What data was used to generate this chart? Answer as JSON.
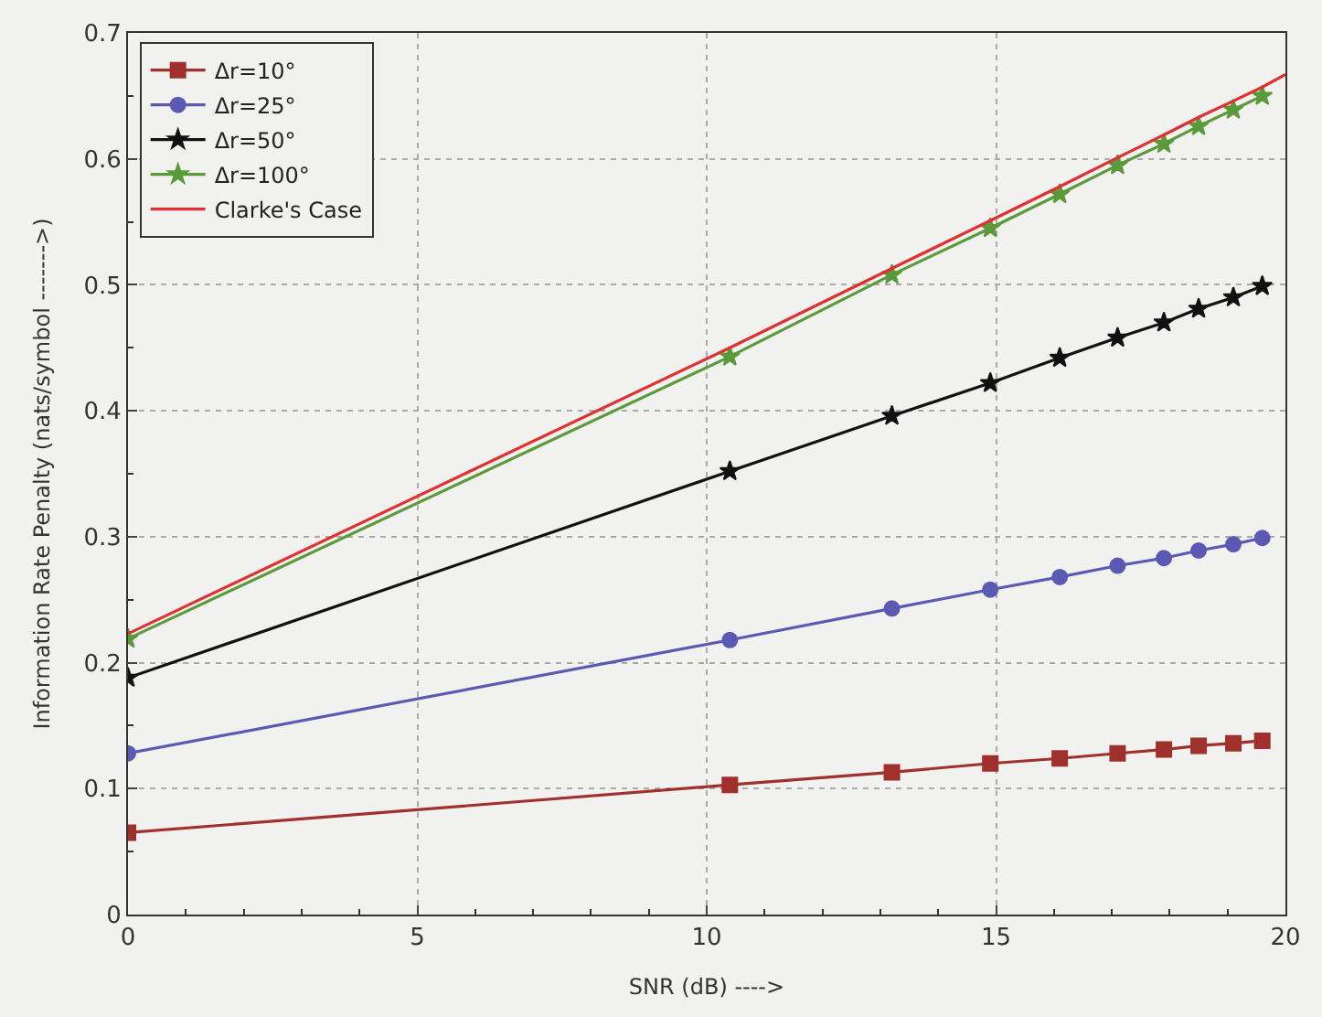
{
  "chart_data": {
    "type": "line",
    "xlabel": "SNR (dB) ---->",
    "ylabel": "Information Rate Penalty (nats/symbol ------->)",
    "xlim": [
      0,
      20
    ],
    "xticks": [
      0,
      5,
      10,
      15,
      20
    ],
    "ylim": [
      0,
      0.7
    ],
    "yticks": [
      0,
      0.1,
      0.2,
      0.3,
      0.4,
      0.5,
      0.6,
      0.7
    ],
    "grid": true,
    "legend": "top left",
    "line_style": "solid",
    "x": [
      0,
      10.4,
      13.2,
      14.9,
      16.1,
      17.1,
      17.9,
      18.5,
      19.1,
      19.6
    ],
    "series": [
      {
        "name": "Δr=10°",
        "color": "#a0302c",
        "marker": "square",
        "values": [
          0.065,
          0.103,
          0.113,
          0.12,
          0.124,
          0.128,
          0.131,
          0.134,
          0.136,
          0.138
        ]
      },
      {
        "name": "Δr=25°",
        "color": "#5a5ab4",
        "marker": "circle",
        "values": [
          0.128,
          0.218,
          0.243,
          0.258,
          0.268,
          0.277,
          0.283,
          0.289,
          0.294,
          0.299
        ]
      },
      {
        "name": "Δr=50°",
        "color": "#111111",
        "marker": "star",
        "values": [
          0.188,
          0.352,
          0.396,
          0.422,
          0.442,
          0.458,
          0.47,
          0.481,
          0.49,
          0.499
        ]
      },
      {
        "name": "Δr=100°",
        "color": "#5a9a3a",
        "marker": "star",
        "values": [
          0.219,
          0.443,
          0.508,
          0.545,
          0.572,
          0.595,
          0.612,
          0.626,
          0.639,
          0.65
        ]
      },
      {
        "name": "Clarke's Case",
        "color": "#e03030",
        "marker": "none",
        "x": [
          0,
          10.4,
          13.2,
          14.9,
          16.1,
          17.1,
          17.9,
          18.5,
          19.1,
          19.6,
          20
        ],
        "values": [
          0.223,
          0.45,
          0.513,
          0.551,
          0.578,
          0.601,
          0.619,
          0.633,
          0.646,
          0.657,
          0.667
        ]
      }
    ]
  }
}
